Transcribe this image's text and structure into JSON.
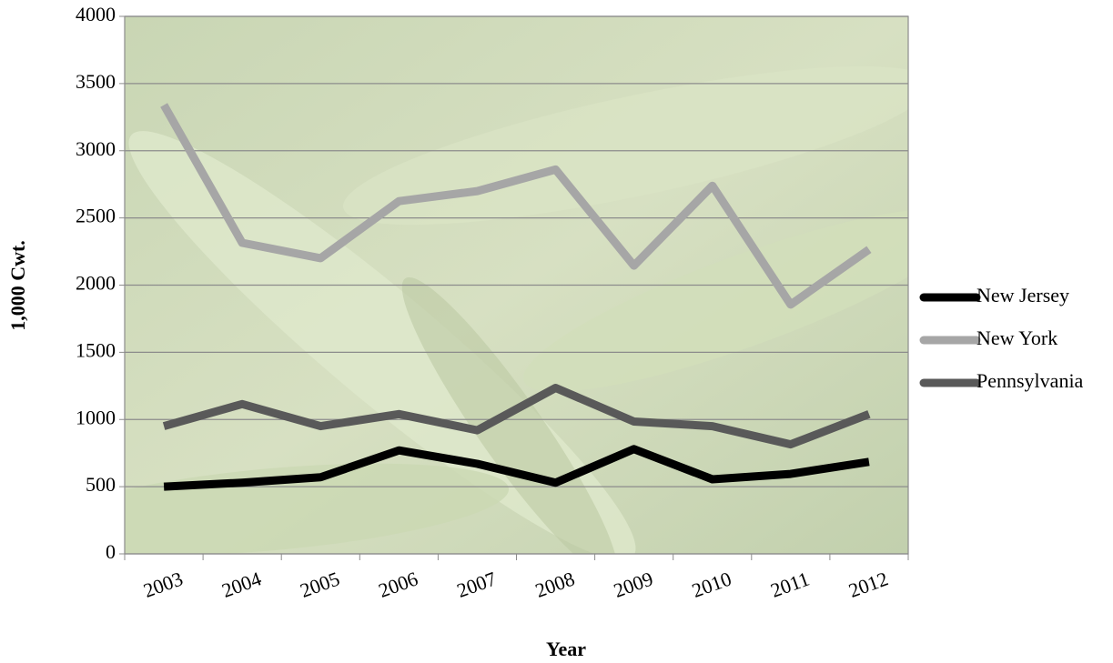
{
  "chart_data": {
    "type": "line",
    "x_label": "Year",
    "y_label": "1,000 Cwt.",
    "categories": [
      "2003",
      "2004",
      "2005",
      "2006",
      "2007",
      "2008",
      "2009",
      "2010",
      "2011",
      "2012"
    ],
    "series": [
      {
        "name": "New Jersey",
        "color": "#000000",
        "values": [
          500,
          530,
          570,
          770,
          670,
          530,
          780,
          555,
          595,
          685
        ]
      },
      {
        "name": "New York",
        "color": "#a6a6a6",
        "values": [
          3340,
          2315,
          2200,
          2625,
          2700,
          2860,
          2145,
          2740,
          1855,
          2265
        ]
      },
      {
        "name": "Pennsylvania",
        "color": "#595959",
        "values": [
          950,
          1115,
          950,
          1040,
          920,
          1235,
          985,
          950,
          815,
          1040
        ]
      }
    ],
    "ylim": [
      0,
      4000
    ],
    "yticks": [
      0,
      500,
      1000,
      1500,
      2000,
      2500,
      3000,
      3500,
      4000
    ],
    "grid": true,
    "legend": "right"
  }
}
